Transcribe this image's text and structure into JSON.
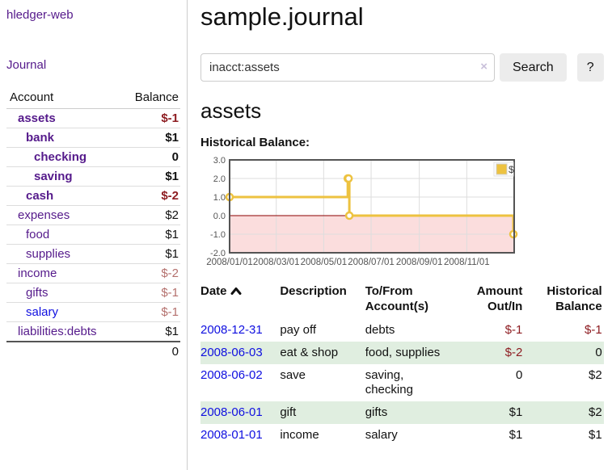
{
  "app": {
    "title": "hledger-web"
  },
  "sidebar": {
    "journal_link": "Journal",
    "table": {
      "headers": {
        "account": "Account",
        "balance": "Balance"
      },
      "rows": [
        {
          "name": "assets",
          "balance": "$-1",
          "depth": 1,
          "weight": "bold",
          "name_color": "purple",
          "value_color": "strong-neg"
        },
        {
          "name": "bank",
          "balance": "$1",
          "depth": 2,
          "weight": "bold",
          "name_color": "purple",
          "value_color": ""
        },
        {
          "name": "checking",
          "balance": "0",
          "depth": 3,
          "weight": "bold",
          "name_color": "purple",
          "value_color": ""
        },
        {
          "name": "saving",
          "balance": "$1",
          "depth": 3,
          "weight": "bold",
          "name_color": "purple",
          "value_color": ""
        },
        {
          "name": "cash",
          "balance": "$-2",
          "depth": 2,
          "weight": "bold",
          "name_color": "purple",
          "value_color": "strong-neg"
        },
        {
          "name": "expenses",
          "balance": "$2",
          "depth": 1,
          "weight": "",
          "name_color": "purple",
          "value_color": ""
        },
        {
          "name": "food",
          "balance": "$1",
          "depth": 2,
          "weight": "",
          "name_color": "purple",
          "value_color": ""
        },
        {
          "name": "supplies",
          "balance": "$1",
          "depth": 2,
          "weight": "",
          "name_color": "purple",
          "value_color": ""
        },
        {
          "name": "income",
          "balance": "$-2",
          "depth": 1,
          "weight": "",
          "name_color": "purple",
          "value_color": "soft-neg"
        },
        {
          "name": "gifts",
          "balance": "$-1",
          "depth": 2,
          "weight": "",
          "name_color": "purple",
          "value_color": "soft-neg"
        },
        {
          "name": "salary",
          "balance": "$-1",
          "depth": 2,
          "weight": "",
          "name_color": "blue",
          "value_color": "soft-neg"
        },
        {
          "name": "liabilities:debts",
          "balance": "$1",
          "depth": 1,
          "weight": "",
          "name_color": "purple",
          "value_color": ""
        }
      ],
      "total": "0"
    }
  },
  "header": {
    "title": "sample.journal"
  },
  "search": {
    "value": "inacct:assets",
    "clear_icon": "×",
    "button_label": "Search",
    "help_label": "?"
  },
  "report": {
    "heading": "assets",
    "chart_label": "Historical Balance:"
  },
  "chart_data": {
    "type": "line",
    "title": "Historical Balance",
    "step": true,
    "series": [
      {
        "name": "$",
        "color": "#EDC240",
        "points": [
          {
            "date": "2008-01-01",
            "value": 1
          },
          {
            "date": "2008-06-01",
            "value": 2
          },
          {
            "date": "2008-06-02",
            "value": 2
          },
          {
            "date": "2008-06-03",
            "value": 0
          },
          {
            "date": "2008-12-31",
            "value": -1
          }
        ]
      }
    ],
    "x_range": [
      "2008-01-01",
      "2009-01-01"
    ],
    "x_ticks": [
      "2008/01/01",
      "2008/03/01",
      "2008/05/01",
      "2008/07/01",
      "2008/09/01",
      "2008/11/01"
    ],
    "y_ticks": [
      "3.0",
      "2.0",
      "1.0",
      "0.0",
      "-1.0",
      "-2.0"
    ],
    "ylim": [
      -2,
      3
    ],
    "grid": true,
    "legend_position": "top-right",
    "colors": {
      "grid": "#dddddd",
      "border": "#545454",
      "tick_text": "#545454",
      "zero_line": "#8b0000",
      "negative_fill": "#fbdddd",
      "marker_fill": "#ffffff"
    }
  },
  "register": {
    "headers": {
      "date": "Date",
      "description": "Description",
      "accounts": "To/From Account(s)",
      "amount": "Amount Out/In",
      "balance": "Historical Balance"
    },
    "rows": [
      {
        "date": "2008-12-31",
        "description": "pay off",
        "accounts": "debts",
        "amount": "$-1",
        "balance": "$-1",
        "amount_color": "neg",
        "balance_color": "neg"
      },
      {
        "date": "2008-06-03",
        "description": "eat & shop",
        "accounts": "food, supplies",
        "amount": "$-2",
        "balance": "0",
        "amount_color": "neg",
        "balance_color": ""
      },
      {
        "date": "2008-06-02",
        "description": "save",
        "accounts": "saving, checking",
        "amount": "0",
        "balance": "$2",
        "amount_color": "",
        "balance_color": ""
      },
      {
        "date": "2008-06-01",
        "description": "gift",
        "accounts": "gifts",
        "amount": "$1",
        "balance": "$2",
        "amount_color": "",
        "balance_color": ""
      },
      {
        "date": "2008-01-01",
        "description": "income",
        "accounts": "salary",
        "amount": "$1",
        "balance": "$1",
        "amount_color": "",
        "balance_color": ""
      }
    ]
  }
}
